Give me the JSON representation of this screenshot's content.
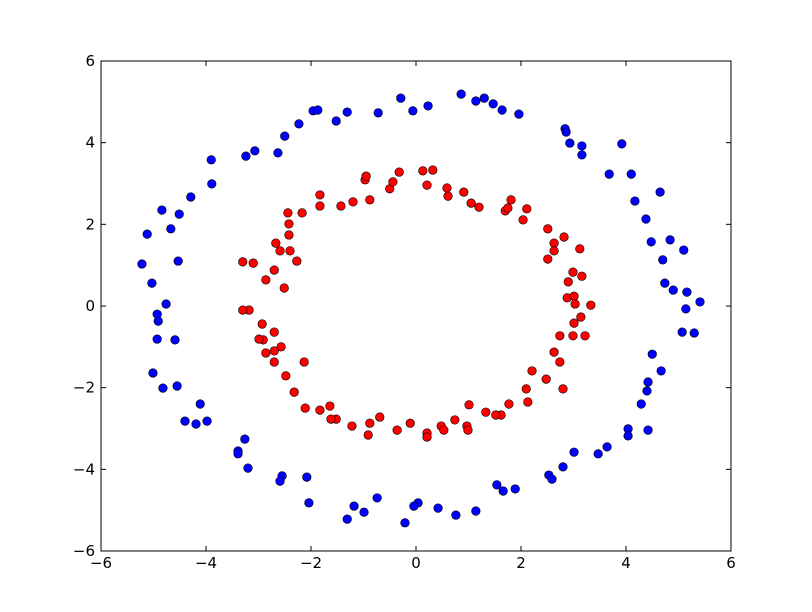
{
  "chart_data": {
    "type": "scatter",
    "xlim": [
      -6,
      6
    ],
    "ylim": [
      -6,
      6
    ],
    "xticks": [
      {
        "value": -6,
        "label": "−6"
      },
      {
        "value": -4,
        "label": "−4"
      },
      {
        "value": -2,
        "label": "−2"
      },
      0,
      2,
      4,
      6
    ],
    "yticks": [
      {
        "value": -6,
        "label": "−6"
      },
      {
        "value": -4,
        "label": "−4"
      },
      {
        "value": -2,
        "label": "−2"
      },
      0,
      2,
      4,
      6
    ],
    "grid": false,
    "series": [
      {
        "color": "#0000ff",
        "x": [
          -5.22,
          -5.12,
          -5.03,
          -4.84,
          -4.76,
          -4.93,
          -4.91,
          -4.93,
          -4.59,
          -5.01,
          -4.82,
          -4.55,
          -4.53,
          -4.67,
          -4.51,
          -4.29,
          -3.89,
          -3.9,
          -3.24,
          -3.07,
          -2.63,
          -2.5,
          -2.23,
          -1.96,
          -1.87,
          -1.52,
          -1.31,
          -0.72,
          -0.29,
          -0.06,
          0.23,
          0.86,
          1.14,
          1.3,
          1.47,
          1.64,
          1.96,
          2.84,
          2.86,
          2.93,
          3.16,
          3.16,
          3.68,
          3.92,
          4.1,
          4.17,
          4.38,
          4.48,
          4.65,
          4.7,
          4.84,
          5.1,
          4.74,
          4.9,
          5.16,
          5.41,
          5.14,
          5.07,
          5.3,
          4.5,
          4.67,
          4.42,
          4.4,
          4.29,
          4.42,
          4.04,
          4.04,
          3.64,
          3.47,
          3.01,
          2.8,
          2.53,
          2.59,
          1.89,
          1.66,
          1.54,
          1.14,
          0.76,
          0.42,
          0.04,
          -0.04,
          -0.21,
          -0.74,
          -0.99,
          -1.18,
          -1.31,
          -2.04,
          -2.08,
          -2.55,
          -2.59,
          -3.2,
          -3.39,
          -3.39,
          -3.26,
          -3.98,
          -4.19,
          -4.4,
          -4.11
        ],
        "values": [
          1.03,
          1.76,
          0.56,
          2.35,
          0.05,
          -0.2,
          -0.37,
          -0.81,
          -0.83,
          -1.64,
          -2.01,
          -1.96,
          1.1,
          1.89,
          2.25,
          2.67,
          2.99,
          3.58,
          3.67,
          3.8,
          3.75,
          4.16,
          4.46,
          4.78,
          4.8,
          4.53,
          4.75,
          4.73,
          5.09,
          4.78,
          4.9,
          5.19,
          5.02,
          5.09,
          4.95,
          4.8,
          4.7,
          4.34,
          4.26,
          3.99,
          3.92,
          3.7,
          3.23,
          3.97,
          3.23,
          2.57,
          2.13,
          1.57,
          2.79,
          1.13,
          1.62,
          1.37,
          0.56,
          0.39,
          0.34,
          0.1,
          -0.07,
          -0.64,
          -0.66,
          -1.18,
          -1.59,
          -1.86,
          -2.08,
          -2.4,
          -3.04,
          -3.01,
          -3.18,
          -3.45,
          -3.62,
          -3.58,
          -3.94,
          -4.14,
          -4.24,
          -4.48,
          -4.53,
          -4.38,
          -5.02,
          -5.12,
          -4.95,
          -4.82,
          -4.9,
          -5.31,
          -4.7,
          -5.05,
          -4.9,
          -5.22,
          -4.82,
          -4.19,
          -4.16,
          -4.29,
          -3.97,
          -3.55,
          -3.62,
          -3.26,
          -2.82,
          -2.89,
          -2.82,
          -2.4
        ]
      },
      {
        "color": "#ff0000",
        "x": [
          -3.3,
          -3.1,
          -2.86,
          -2.7,
          -2.51,
          -2.27,
          -2.4,
          -2.59,
          -2.67,
          -2.42,
          -2.42,
          -2.44,
          -2.17,
          -1.83,
          -1.83,
          -1.43,
          -1.2,
          -0.88,
          -0.97,
          -0.95,
          -0.5,
          -0.44,
          -0.32,
          0.13,
          0.32,
          0.21,
          0.59,
          0.61,
          0.91,
          1.05,
          1.2,
          1.7,
          1.81,
          1.75,
          2.11,
          2.04,
          2.51,
          2.63,
          2.63,
          2.51,
          2.82,
          3.12,
          2.9,
          2.99,
          2.88,
          3.01,
          3.03,
          3.33,
          3.16,
          3.14,
          3.22,
          3.01,
          2.74,
          2.99,
          2.63,
          2.74,
          2.48,
          2.8,
          2.21,
          2.1,
          2.13,
          1.77,
          1.62,
          1.52,
          1.33,
          1.01,
          0.74,
          0.48,
          0.53,
          0.97,
          0.99,
          0.21,
          0.21,
          -0.11,
          -0.36,
          -0.69,
          -0.88,
          -0.91,
          -1.22,
          -1.52,
          -1.62,
          -1.64,
          -1.83,
          -2.11,
          -2.32,
          -2.48,
          -2.57,
          -2.13,
          -2.7,
          -2.86,
          -2.91,
          -2.99,
          -2.7,
          -2.7,
          -2.93,
          -3.18,
          -3.3
        ],
        "values": [
          1.08,
          1.05,
          0.64,
          0.88,
          0.44,
          1.1,
          1.35,
          1.35,
          1.54,
          1.74,
          2.01,
          2.28,
          2.28,
          2.45,
          2.72,
          2.45,
          2.55,
          2.6,
          3.09,
          3.18,
          2.87,
          3.04,
          3.28,
          3.31,
          3.33,
          2.96,
          2.89,
          2.69,
          2.79,
          2.52,
          2.42,
          2.33,
          2.6,
          2.4,
          2.38,
          2.11,
          1.89,
          1.54,
          1.35,
          1.15,
          1.69,
          1.4,
          0.59,
          0.83,
          0.2,
          0.24,
          0.05,
          0.02,
          0.73,
          -0.27,
          -0.73,
          -0.42,
          -0.73,
          -0.73,
          -1.13,
          -1.37,
          -1.79,
          -2.03,
          -1.59,
          -2.03,
          -2.35,
          -2.4,
          -2.67,
          -2.67,
          -2.6,
          -2.42,
          -2.79,
          -2.94,
          -3.04,
          -2.94,
          -3.04,
          -3.11,
          -3.21,
          -2.87,
          -3.04,
          -2.72,
          -2.87,
          -3.16,
          -2.94,
          -2.77,
          -2.77,
          -2.45,
          -2.55,
          -2.5,
          -2.11,
          -1.71,
          -1.0,
          -1.37,
          -1.1,
          -1.15,
          -0.83,
          -0.81,
          -0.64,
          -1.37,
          -0.44,
          -0.1,
          -0.1
        ]
      }
    ]
  }
}
